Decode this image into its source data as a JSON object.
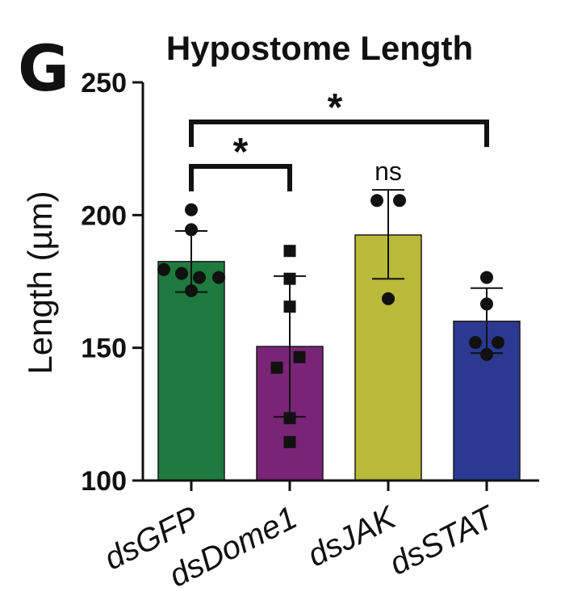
{
  "panel_label": "G",
  "chart_data": {
    "type": "bar",
    "title": "Hypostome Length",
    "xlabel": "",
    "ylabel": "Length (µm)",
    "ylim": [
      100,
      250
    ],
    "yticks": [
      100,
      150,
      200,
      250
    ],
    "categories": [
      "dsGFP",
      "dsDome1",
      "dsJAK",
      "dsSTAT"
    ],
    "values": [
      182.5,
      150.5,
      192.5,
      160
    ],
    "error": [
      {
        "low": 171,
        "high": 194
      },
      {
        "low": 124,
        "high": 177
      },
      {
        "low": 176,
        "high": 209.5
      },
      {
        "low": 148,
        "high": 172.5
      }
    ],
    "points": [
      [
        202,
        194.5,
        179.5,
        178,
        176.5,
        176.5,
        171.5
      ],
      [
        186.5,
        176,
        165.5,
        146.5,
        142.5,
        123.5,
        114.5
      ],
      [
        205.5,
        205.5,
        168.5
      ],
      [
        176.5,
        166.5,
        152,
        152,
        147.5
      ]
    ],
    "markers": [
      "circle",
      "square",
      "circle",
      "circle"
    ],
    "colors": [
      "#1e7a3e",
      "#7a2478",
      "#b9b93a",
      "#2b3990"
    ],
    "significance": [
      {
        "from": 0,
        "to": 1,
        "label": "*"
      },
      {
        "from": 0,
        "to": 3,
        "label": "*"
      },
      {
        "at": 2,
        "label": "ns"
      }
    ]
  }
}
